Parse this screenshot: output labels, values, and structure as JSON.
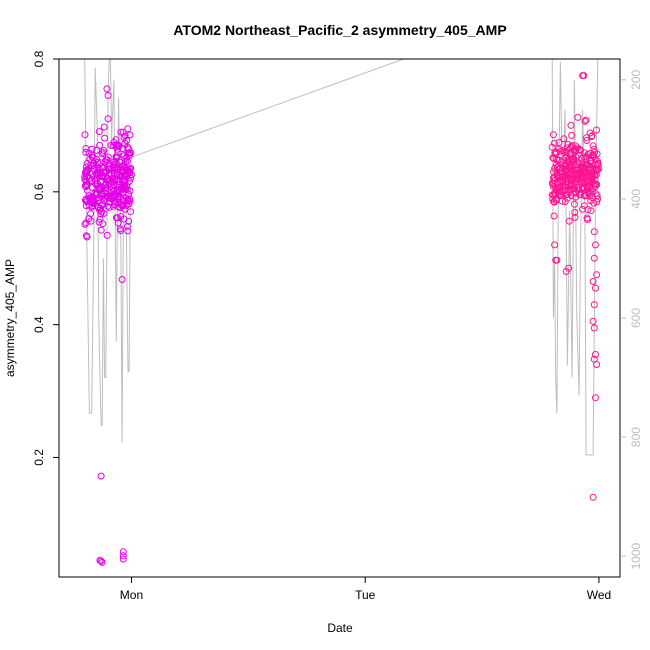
{
  "chart_data": {
    "type": "scatter",
    "title": "ATOM2 Northeast_Pacific_2 asymmetry_405_AMP",
    "xlabel": "Date",
    "ylabel": "asymmetry_405_AMP",
    "x_ticks": [
      "Mon",
      "Tue",
      "Wed"
    ],
    "x_tick_days": [
      1,
      2,
      3
    ],
    "xlim_days": [
      0.69,
      3.09
    ],
    "ylim": [
      0.02,
      0.8
    ],
    "y_ticks": [
      "0.2",
      "0.4",
      "0.6",
      "0.8"
    ],
    "y_tick_values": [
      0.2,
      0.4,
      0.6,
      0.8
    ],
    "right_axis": {
      "ticks": [
        "200",
        "400",
        "600",
        "800",
        "1000"
      ],
      "tick_values": [
        200,
        400,
        600,
        800,
        1000
      ],
      "range_top_to_bottom": [
        165,
        1035
      ]
    },
    "series": [
      {
        "color": "#e600e6",
        "x_range_days": [
          0.8,
          1.0
        ],
        "typical_range": [
          0.53,
          0.7
        ],
        "outliers": [
          {
            "x": 0.895,
            "y": 0.755
          },
          {
            "x": 0.9,
            "y": 0.745
          },
          {
            "x": 0.9,
            "y": 0.71
          },
          {
            "x": 0.87,
            "y": 0.172
          },
          {
            "x": 0.87,
            "y": 0.044
          },
          {
            "x": 0.875,
            "y": 0.042
          },
          {
            "x": 0.865,
            "y": 0.045
          },
          {
            "x": 0.96,
            "y": 0.468
          },
          {
            "x": 0.965,
            "y": 0.058
          },
          {
            "x": 0.965,
            "y": 0.052
          },
          {
            "x": 0.965,
            "y": 0.047
          },
          {
            "x": 0.81,
            "y": 0.532
          },
          {
            "x": 0.955,
            "y": 0.69
          }
        ]
      },
      {
        "color": "#ff1493",
        "x_range_days": [
          2.8,
          3.0
        ],
        "typical_range": [
          0.55,
          0.7
        ],
        "outliers": [
          {
            "x": 2.805,
            "y": 0.686
          },
          {
            "x": 2.88,
            "y": 0.7
          },
          {
            "x": 2.91,
            "y": 0.712
          },
          {
            "x": 2.93,
            "y": 0.775
          },
          {
            "x": 2.935,
            "y": 0.775
          },
          {
            "x": 2.945,
            "y": 0.708
          },
          {
            "x": 2.94,
            "y": 0.706
          },
          {
            "x": 2.815,
            "y": 0.497
          },
          {
            "x": 2.82,
            "y": 0.497
          },
          {
            "x": 2.81,
            "y": 0.52
          },
          {
            "x": 2.86,
            "y": 0.48
          },
          {
            "x": 2.87,
            "y": 0.485
          },
          {
            "x": 2.98,
            "y": 0.54
          },
          {
            "x": 2.985,
            "y": 0.52
          },
          {
            "x": 2.98,
            "y": 0.5
          },
          {
            "x": 2.99,
            "y": 0.475
          },
          {
            "x": 2.975,
            "y": 0.465
          },
          {
            "x": 2.985,
            "y": 0.455
          },
          {
            "x": 2.98,
            "y": 0.43
          },
          {
            "x": 2.975,
            "y": 0.405
          },
          {
            "x": 2.98,
            "y": 0.395
          },
          {
            "x": 2.985,
            "y": 0.355
          },
          {
            "x": 2.98,
            "y": 0.348
          },
          {
            "x": 2.99,
            "y": 0.34
          },
          {
            "x": 2.985,
            "y": 0.29
          },
          {
            "x": 2.975,
            "y": 0.14
          }
        ]
      }
    ],
    "depth_line": {
      "color": "#bebebe",
      "segments": [
        [
          [
            0.8,
            160
          ],
          [
            0.81,
            500
          ],
          [
            0.82,
            760
          ],
          [
            0.83,
            760
          ],
          [
            0.84,
            420
          ],
          [
            0.845,
            180
          ],
          [
            0.855,
            300
          ],
          [
            0.86,
            600
          ],
          [
            0.87,
            780
          ],
          [
            0.875,
            780
          ],
          [
            0.88,
            500
          ],
          [
            0.885,
            700
          ],
          [
            0.89,
            700
          ],
          [
            0.9,
            220
          ],
          [
            0.905,
            160
          ]
        ],
        [
          [
            0.91,
            160
          ],
          [
            0.915,
            300
          ],
          [
            0.925,
            200
          ],
          [
            0.935,
            640
          ],
          [
            0.94,
            420
          ],
          [
            0.945,
            230
          ],
          [
            0.955,
            480
          ],
          [
            0.96,
            810
          ],
          [
            0.965,
            450
          ],
          [
            0.97,
            290
          ],
          [
            0.975,
            300
          ],
          [
            0.98,
            520
          ],
          [
            0.985,
            690
          ],
          [
            0.99,
            690
          ],
          [
            0.995,
            380
          ],
          [
            1.0,
            330
          ]
        ],
        [
          [
            1.0,
            330
          ],
          [
            2.2,
            160
          ]
        ],
        [
          [
            2.8,
            160
          ],
          [
            2.805,
            600
          ],
          [
            2.81,
            500
          ],
          [
            2.815,
            700
          ],
          [
            2.82,
            760
          ],
          [
            2.825,
            450
          ],
          [
            2.835,
            170
          ],
          [
            2.845,
            400
          ],
          [
            2.855,
            250
          ],
          [
            2.865,
            680
          ],
          [
            2.875,
            420
          ],
          [
            2.885,
            700
          ],
          [
            2.895,
            200
          ],
          [
            2.905,
            600
          ],
          [
            2.915,
            730
          ],
          [
            2.92,
            500
          ],
          [
            2.93,
            250
          ],
          [
            2.94,
            420
          ],
          [
            2.945,
            830
          ],
          [
            2.975,
            830
          ],
          [
            2.985,
            400
          ],
          [
            2.995,
            160
          ]
        ]
      ]
    }
  }
}
